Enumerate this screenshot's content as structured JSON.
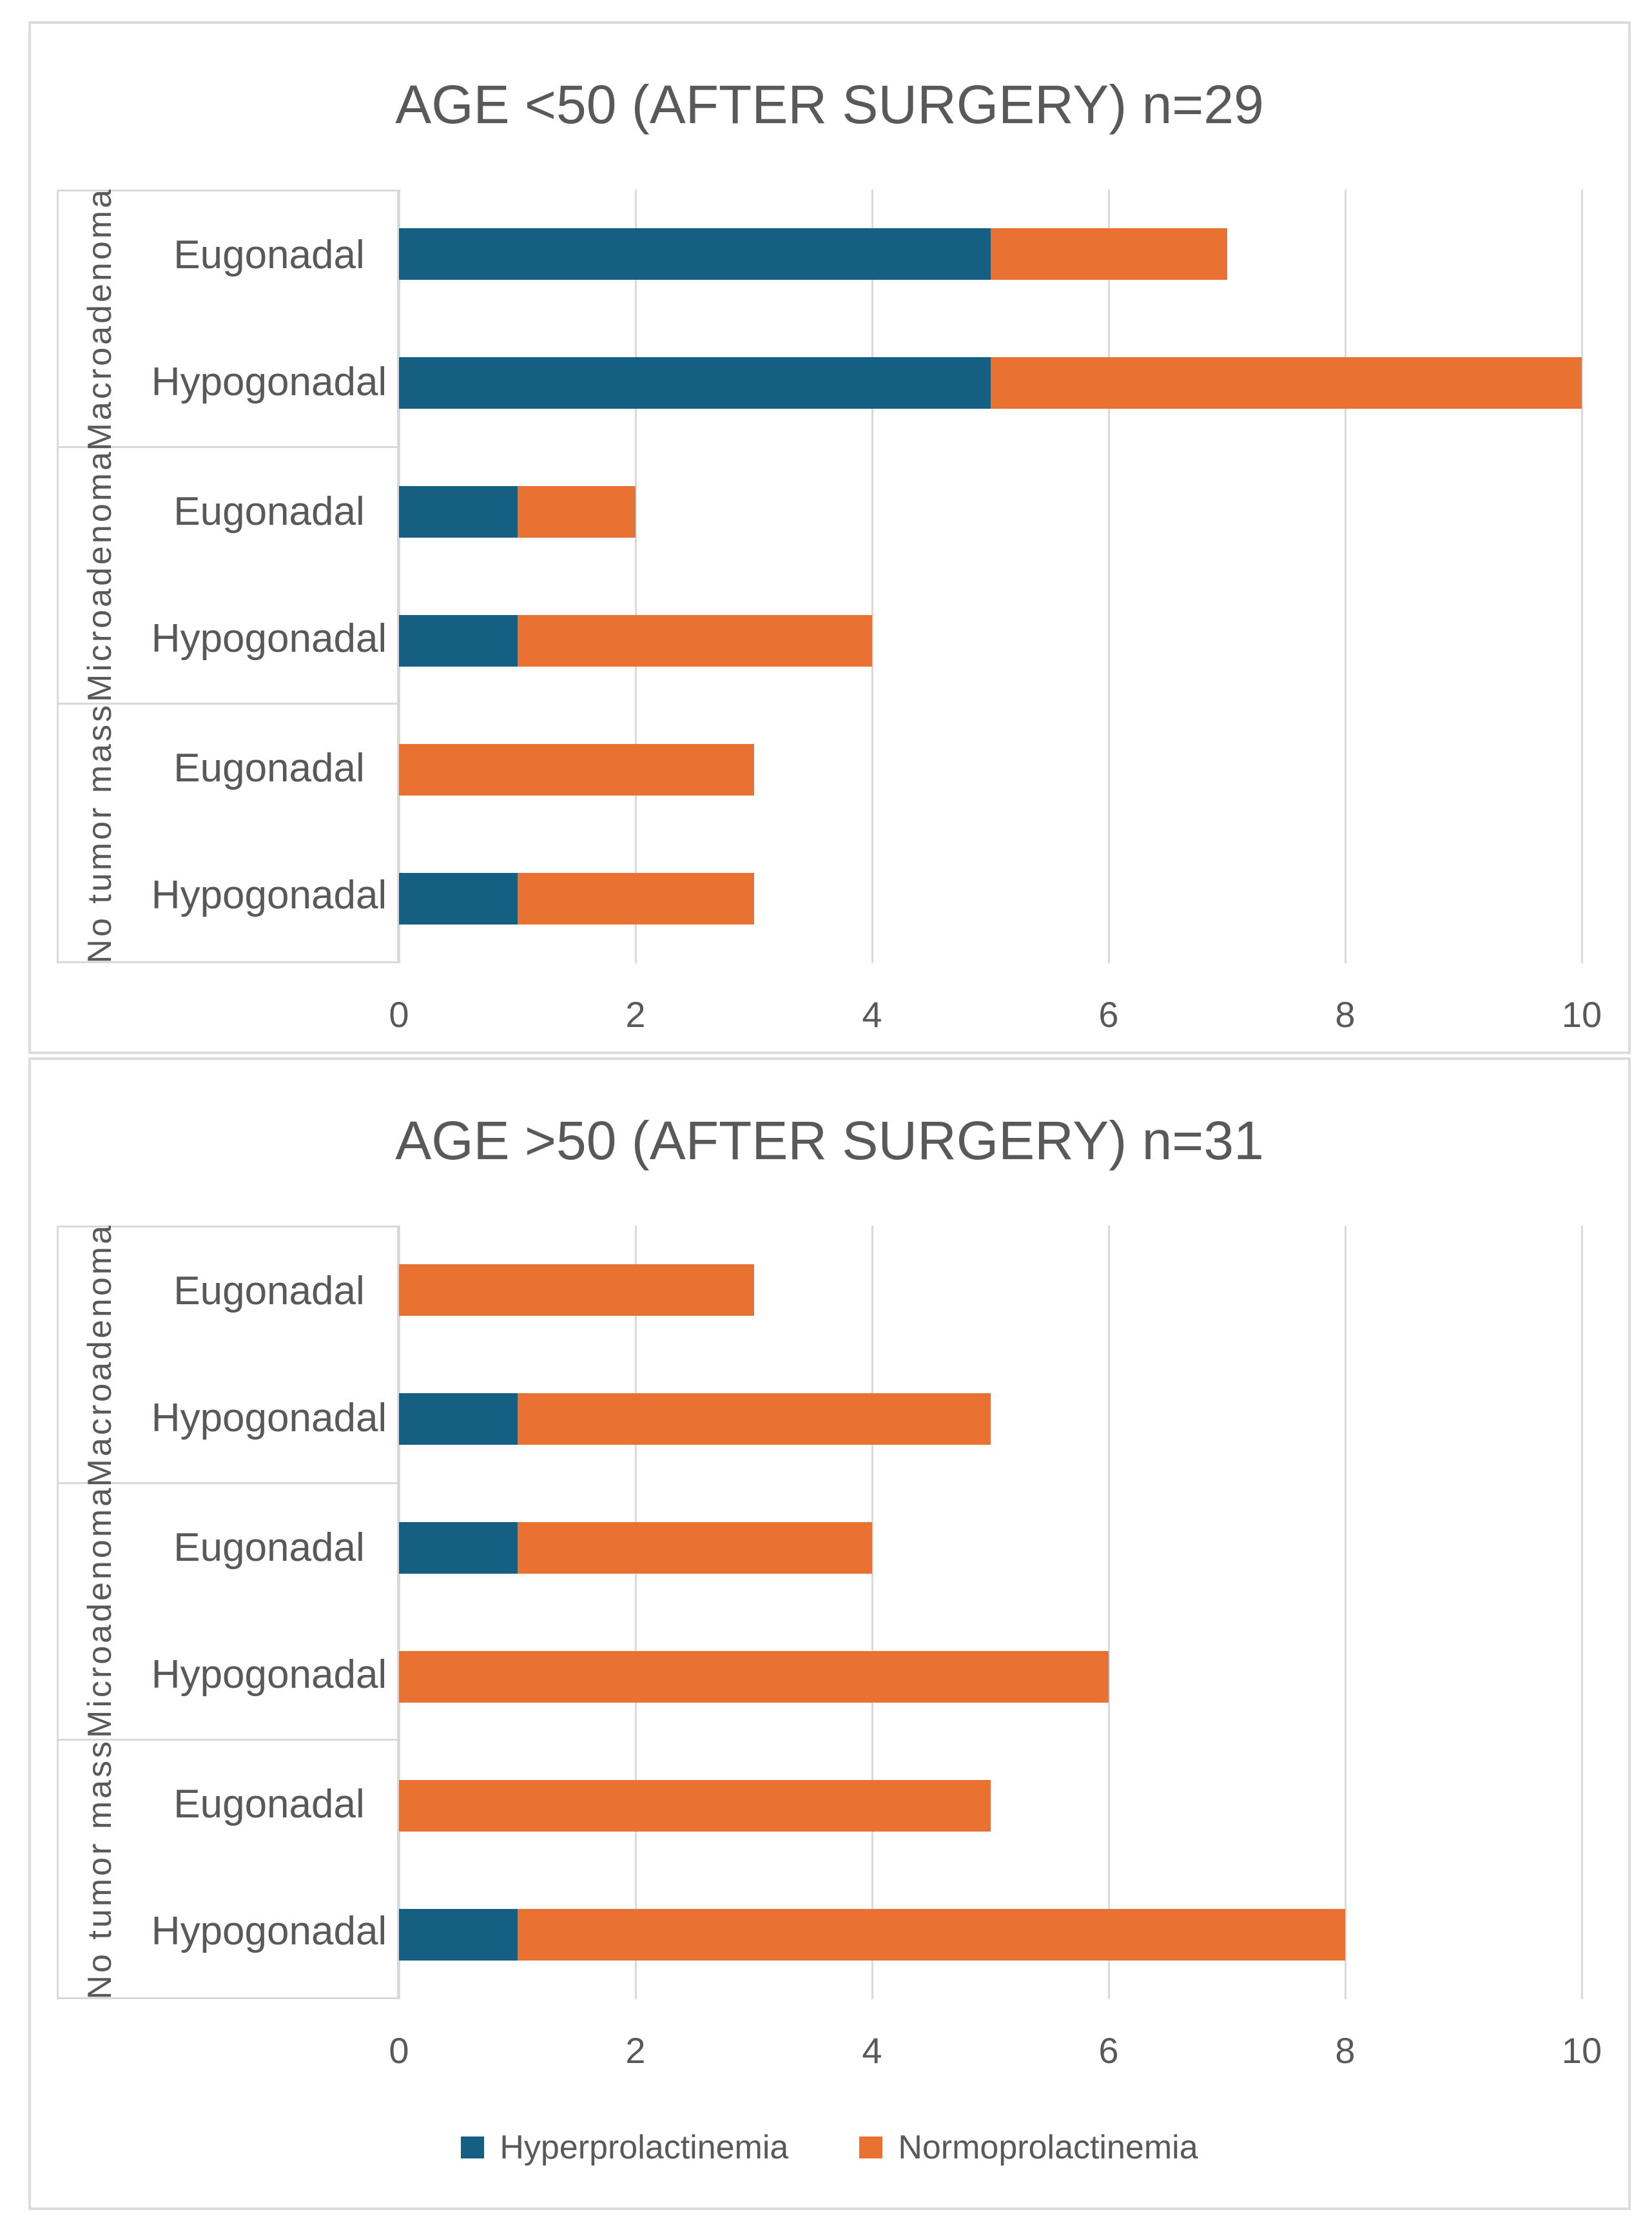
{
  "colors": {
    "hyper": "#156082",
    "normo": "#E97132",
    "text": "#595959",
    "grid": "#D9D9D9",
    "chart_border": "#DCDCDC",
    "background": "#FFFFFF"
  },
  "legend": {
    "items": [
      {
        "label": "Hyperprolactinemia",
        "color_key": "hyper"
      },
      {
        "label": "Normoprolactinemia",
        "color_key": "normo"
      }
    ]
  },
  "chart_data": [
    {
      "type": "bar",
      "orientation": "horizontal",
      "stacked": true,
      "title": "AGE <50 (AFTER SURGERY) n=29",
      "n": 29,
      "groups": [
        {
          "label": "Macroadenoma",
          "rows": [
            "Eugonadal",
            "Hypogonadal"
          ]
        },
        {
          "label": "Microadenoma",
          "rows": [
            "Eugonadal",
            "Hypogonadal"
          ]
        },
        {
          "label": "No tumor mass",
          "rows": [
            "Eugonadal",
            "Hypogonadal"
          ]
        }
      ],
      "categories": [
        "Macroadenoma Eugonadal",
        "Macroadenoma Hypogonadal",
        "Microadenoma Eugonadal",
        "Microadenoma Hypogonadal",
        "No tumor mass Eugonadal",
        "No tumor mass Hypogonadal"
      ],
      "series": [
        {
          "name": "Hyperprolactinemia",
          "color": "#156082",
          "values": [
            5,
            5,
            1,
            1,
            0,
            1
          ]
        },
        {
          "name": "Normoprolactinemia",
          "color": "#E97132",
          "values": [
            2,
            5,
            1,
            3,
            3,
            2
          ]
        }
      ],
      "x_ticks": [
        0,
        2,
        4,
        6,
        8,
        10
      ],
      "xlim": [
        0,
        10
      ],
      "grid": true,
      "legend_visible": false
    },
    {
      "type": "bar",
      "orientation": "horizontal",
      "stacked": true,
      "title": "AGE >50 (AFTER SURGERY) n=31",
      "n": 31,
      "groups": [
        {
          "label": "Macroadenoma",
          "rows": [
            "Eugonadal",
            "Hypogonadal"
          ]
        },
        {
          "label": "Microadenoma",
          "rows": [
            "Eugonadal",
            "Hypogonadal"
          ]
        },
        {
          "label": "No tumor mass",
          "rows": [
            "Eugonadal",
            "Hypogonadal"
          ]
        }
      ],
      "categories": [
        "Macroadenoma Eugonadal",
        "Macroadenoma Hypogonadal",
        "Microadenoma Eugonadal",
        "Microadenoma Hypogonadal",
        "No tumor mass Eugonadal",
        "No tumor mass Hypogonadal"
      ],
      "series": [
        {
          "name": "Hyperprolactinemia",
          "color": "#156082",
          "values": [
            0,
            1,
            1,
            0,
            0,
            1
          ]
        },
        {
          "name": "Normoprolactinemia",
          "color": "#E97132",
          "values": [
            3,
            4,
            3,
            6,
            5,
            7
          ]
        }
      ],
      "x_ticks": [
        0,
        2,
        4,
        6,
        8,
        10
      ],
      "xlim": [
        0,
        10
      ],
      "grid": true,
      "legend_visible": true
    }
  ]
}
